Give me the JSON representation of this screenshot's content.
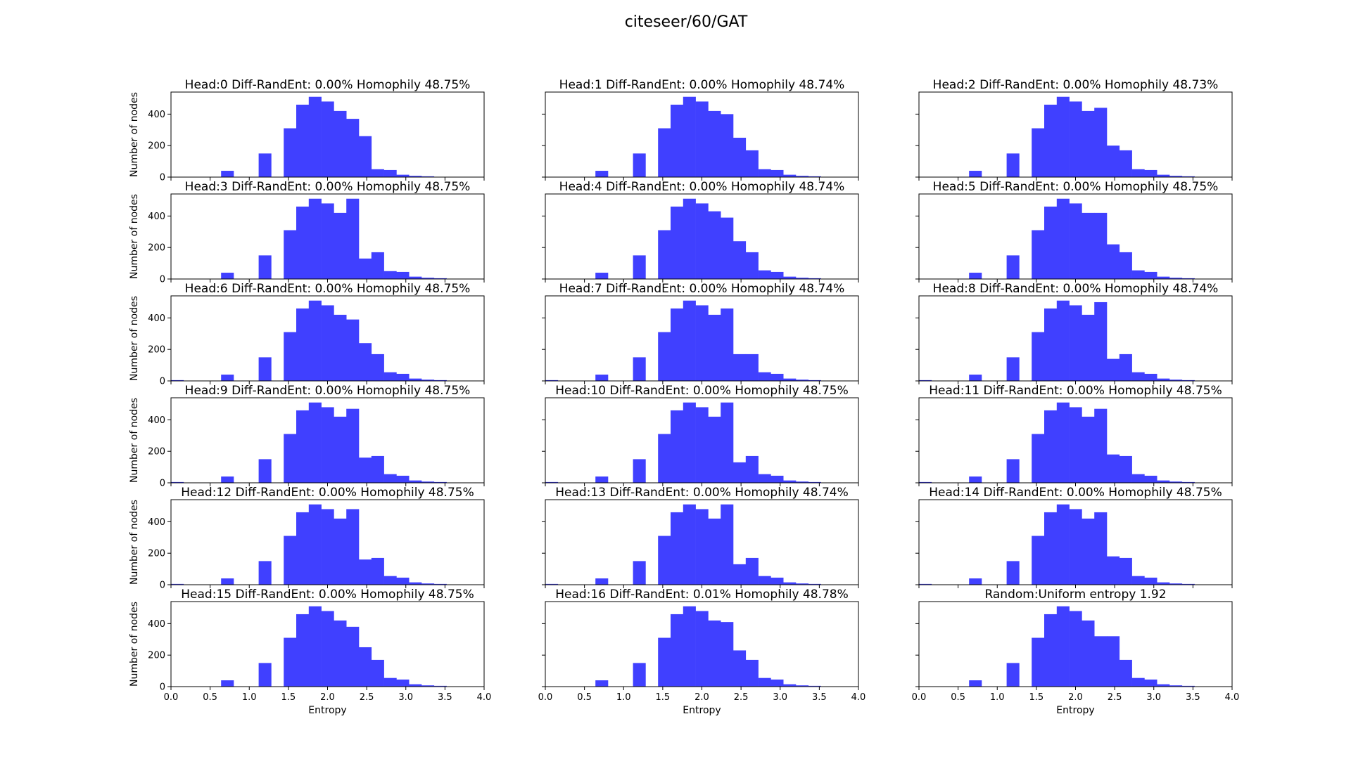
{
  "figure_title": "citeseer/60/GAT",
  "colors": {
    "bar": "#4040ff"
  },
  "chart_data": [
    {
      "type": "bar",
      "title": "Head:0 Diff-RandEnt: 0.00% Homophily 48.75%",
      "ylabel": "Number of nodes",
      "xlabel": "",
      "bin_start": 0.0,
      "bin_width": 0.16,
      "xlim": [
        0,
        4
      ],
      "ylim": [
        0,
        540
      ],
      "xticks": [
        "0.0",
        "0.5",
        "1.0",
        "1.5",
        "2.0",
        "2.5",
        "3.0",
        "3.5",
        "4.0"
      ],
      "yticks": [
        "0",
        "200",
        "400"
      ],
      "values": [
        0,
        0,
        0,
        0,
        40,
        0,
        0,
        150,
        0,
        310,
        460,
        510,
        480,
        420,
        370,
        260,
        50,
        45,
        15,
        8,
        5,
        2,
        0,
        0,
        0
      ]
    },
    {
      "type": "bar",
      "title": "Head:1 Diff-RandEnt: 0.00% Homophily 48.74%",
      "ylabel": "",
      "xlabel": "",
      "bin_start": 0.0,
      "bin_width": 0.16,
      "xlim": [
        0,
        4
      ],
      "ylim": [
        0,
        540
      ],
      "xticks": [
        "0.0",
        "0.5",
        "1.0",
        "1.5",
        "2.0",
        "2.5",
        "3.0",
        "3.5",
        "4.0"
      ],
      "yticks": [
        "0",
        "200",
        "400"
      ],
      "values": [
        0,
        0,
        0,
        0,
        40,
        0,
        0,
        150,
        0,
        310,
        460,
        510,
        480,
        420,
        400,
        250,
        170,
        50,
        45,
        15,
        8,
        5,
        2,
        0,
        0
      ]
    },
    {
      "type": "bar",
      "title": "Head:2 Diff-RandEnt: 0.00% Homophily 48.73%",
      "ylabel": "",
      "xlabel": "",
      "bin_start": 0.0,
      "bin_width": 0.16,
      "xlim": [
        0,
        4
      ],
      "ylim": [
        0,
        540
      ],
      "xticks": [
        "0.0",
        "0.5",
        "1.0",
        "1.5",
        "2.0",
        "2.5",
        "3.0",
        "3.5",
        "4.0"
      ],
      "yticks": [
        "0",
        "200",
        "400"
      ],
      "values": [
        0,
        0,
        0,
        0,
        40,
        0,
        0,
        150,
        0,
        310,
        460,
        510,
        480,
        420,
        440,
        200,
        170,
        50,
        45,
        15,
        8,
        5,
        2,
        0,
        0
      ]
    },
    {
      "type": "bar",
      "title": "Head:3 Diff-RandEnt: 0.00% Homophily 48.75%",
      "ylabel": "Number of nodes",
      "xlabel": "",
      "bin_start": 0.0,
      "bin_width": 0.16,
      "xlim": [
        0,
        4
      ],
      "ylim": [
        0,
        540
      ],
      "xticks": [
        "0.0",
        "0.5",
        "1.0",
        "1.5",
        "2.0",
        "2.5",
        "3.0",
        "3.5",
        "4.0"
      ],
      "yticks": [
        "0",
        "200",
        "400"
      ],
      "values": [
        0,
        0,
        0,
        0,
        40,
        0,
        0,
        150,
        0,
        310,
        460,
        510,
        480,
        420,
        510,
        130,
        170,
        50,
        45,
        15,
        8,
        5,
        2,
        0,
        0
      ]
    },
    {
      "type": "bar",
      "title": "Head:4 Diff-RandEnt: 0.00% Homophily 48.74%",
      "ylabel": "",
      "xlabel": "",
      "bin_start": 0.0,
      "bin_width": 0.16,
      "xlim": [
        0,
        4
      ],
      "ylim": [
        0,
        540
      ],
      "xticks": [
        "0.0",
        "0.5",
        "1.0",
        "1.5",
        "2.0",
        "2.5",
        "3.0",
        "3.5",
        "4.0"
      ],
      "yticks": [
        "0",
        "200",
        "400"
      ],
      "values": [
        0,
        0,
        0,
        0,
        40,
        0,
        0,
        150,
        0,
        310,
        460,
        510,
        480,
        430,
        390,
        240,
        170,
        55,
        45,
        15,
        8,
        5,
        2,
        0,
        0
      ]
    },
    {
      "type": "bar",
      "title": "Head:5 Diff-RandEnt: 0.00% Homophily 48.75%",
      "ylabel": "",
      "xlabel": "",
      "bin_start": 0.0,
      "bin_width": 0.16,
      "xlim": [
        0,
        4
      ],
      "ylim": [
        0,
        540
      ],
      "xticks": [
        "0.0",
        "0.5",
        "1.0",
        "1.5",
        "2.0",
        "2.5",
        "3.0",
        "3.5",
        "4.0"
      ],
      "yticks": [
        "0",
        "200",
        "400"
      ],
      "values": [
        0,
        0,
        0,
        0,
        40,
        0,
        0,
        150,
        0,
        310,
        460,
        510,
        480,
        420,
        420,
        220,
        170,
        55,
        45,
        15,
        8,
        5,
        2,
        0,
        0
      ]
    },
    {
      "type": "bar",
      "title": "Head:6 Diff-RandEnt: 0.00% Homophily 48.75%",
      "ylabel": "Number of nodes",
      "xlabel": "",
      "bin_start": 0.0,
      "bin_width": 0.16,
      "xlim": [
        0,
        4
      ],
      "ylim": [
        0,
        540
      ],
      "xticks": [
        "0.0",
        "0.5",
        "1.0",
        "1.5",
        "2.0",
        "2.5",
        "3.0",
        "3.5",
        "4.0"
      ],
      "yticks": [
        "0",
        "200",
        "400"
      ],
      "values": [
        5,
        0,
        0,
        0,
        40,
        0,
        0,
        150,
        0,
        310,
        460,
        510,
        480,
        420,
        390,
        240,
        170,
        55,
        45,
        15,
        8,
        5,
        2,
        0,
        0
      ]
    },
    {
      "type": "bar",
      "title": "Head:7 Diff-RandEnt: 0.00% Homophily 48.74%",
      "ylabel": "",
      "xlabel": "",
      "bin_start": 0.0,
      "bin_width": 0.16,
      "xlim": [
        0,
        4
      ],
      "ylim": [
        0,
        540
      ],
      "xticks": [
        "0.0",
        "0.5",
        "1.0",
        "1.5",
        "2.0",
        "2.5",
        "3.0",
        "3.5",
        "4.0"
      ],
      "yticks": [
        "0",
        "200",
        "400"
      ],
      "values": [
        5,
        0,
        0,
        0,
        40,
        0,
        0,
        150,
        0,
        310,
        460,
        510,
        480,
        420,
        460,
        170,
        170,
        55,
        45,
        15,
        8,
        5,
        2,
        0,
        0
      ]
    },
    {
      "type": "bar",
      "title": "Head:8 Diff-RandEnt: 0.00% Homophily 48.74%",
      "ylabel": "",
      "xlabel": "",
      "bin_start": 0.0,
      "bin_width": 0.16,
      "xlim": [
        0,
        4
      ],
      "ylim": [
        0,
        540
      ],
      "xticks": [
        "0.0",
        "0.5",
        "1.0",
        "1.5",
        "2.0",
        "2.5",
        "3.0",
        "3.5",
        "4.0"
      ],
      "yticks": [
        "0",
        "200",
        "400"
      ],
      "values": [
        5,
        0,
        0,
        0,
        40,
        0,
        0,
        150,
        0,
        310,
        460,
        510,
        480,
        420,
        500,
        140,
        170,
        55,
        45,
        15,
        8,
        5,
        2,
        0,
        0
      ]
    },
    {
      "type": "bar",
      "title": "Head:9 Diff-RandEnt: 0.00% Homophily 48.75%",
      "ylabel": "Number of nodes",
      "xlabel": "",
      "bin_start": 0.0,
      "bin_width": 0.16,
      "xlim": [
        0,
        4
      ],
      "ylim": [
        0,
        540
      ],
      "xticks": [
        "0.0",
        "0.5",
        "1.0",
        "1.5",
        "2.0",
        "2.5",
        "3.0",
        "3.5",
        "4.0"
      ],
      "yticks": [
        "0",
        "200",
        "400"
      ],
      "values": [
        5,
        0,
        0,
        0,
        40,
        0,
        0,
        150,
        0,
        310,
        460,
        510,
        480,
        420,
        470,
        160,
        170,
        55,
        45,
        15,
        8,
        5,
        2,
        0,
        0
      ]
    },
    {
      "type": "bar",
      "title": "Head:10 Diff-RandEnt: 0.00% Homophily 48.75%",
      "ylabel": "",
      "xlabel": "",
      "bin_start": 0.0,
      "bin_width": 0.16,
      "xlim": [
        0,
        4
      ],
      "ylim": [
        0,
        540
      ],
      "xticks": [
        "0.0",
        "0.5",
        "1.0",
        "1.5",
        "2.0",
        "2.5",
        "3.0",
        "3.5",
        "4.0"
      ],
      "yticks": [
        "0",
        "200",
        "400"
      ],
      "values": [
        5,
        0,
        0,
        0,
        40,
        0,
        0,
        150,
        0,
        310,
        460,
        510,
        480,
        420,
        510,
        130,
        170,
        55,
        45,
        15,
        8,
        5,
        2,
        0,
        0
      ]
    },
    {
      "type": "bar",
      "title": "Head:11 Diff-RandEnt: 0.00% Homophily 48.75%",
      "ylabel": "",
      "xlabel": "",
      "bin_start": 0.0,
      "bin_width": 0.16,
      "xlim": [
        0,
        4
      ],
      "ylim": [
        0,
        540
      ],
      "xticks": [
        "0.0",
        "0.5",
        "1.0",
        "1.5",
        "2.0",
        "2.5",
        "3.0",
        "3.5",
        "4.0"
      ],
      "yticks": [
        "0",
        "200",
        "400"
      ],
      "values": [
        5,
        0,
        0,
        0,
        40,
        0,
        0,
        150,
        0,
        310,
        460,
        510,
        480,
        420,
        470,
        180,
        170,
        55,
        45,
        15,
        8,
        5,
        2,
        0,
        0
      ]
    },
    {
      "type": "bar",
      "title": "Head:12 Diff-RandEnt: 0.00% Homophily 48.75%",
      "ylabel": "Number of nodes",
      "xlabel": "",
      "bin_start": 0.0,
      "bin_width": 0.16,
      "xlim": [
        0,
        4
      ],
      "ylim": [
        0,
        540
      ],
      "xticks": [
        "0.0",
        "0.5",
        "1.0",
        "1.5",
        "2.0",
        "2.5",
        "3.0",
        "3.5",
        "4.0"
      ],
      "yticks": [
        "0",
        "200",
        "400"
      ],
      "values": [
        5,
        0,
        0,
        0,
        40,
        0,
        0,
        150,
        0,
        310,
        460,
        510,
        480,
        420,
        480,
        160,
        170,
        55,
        45,
        15,
        8,
        5,
        2,
        0,
        0
      ]
    },
    {
      "type": "bar",
      "title": "Head:13 Diff-RandEnt: 0.00% Homophily 48.74%",
      "ylabel": "",
      "xlabel": "",
      "bin_start": 0.0,
      "bin_width": 0.16,
      "xlim": [
        0,
        4
      ],
      "ylim": [
        0,
        540
      ],
      "xticks": [
        "0.0",
        "0.5",
        "1.0",
        "1.5",
        "2.0",
        "2.5",
        "3.0",
        "3.5",
        "4.0"
      ],
      "yticks": [
        "0",
        "200",
        "400"
      ],
      "values": [
        5,
        0,
        0,
        0,
        40,
        0,
        0,
        150,
        0,
        310,
        460,
        510,
        480,
        420,
        510,
        130,
        170,
        55,
        45,
        15,
        8,
        5,
        2,
        0,
        0
      ]
    },
    {
      "type": "bar",
      "title": "Head:14 Diff-RandEnt: 0.00% Homophily 48.75%",
      "ylabel": "",
      "xlabel": "",
      "bin_start": 0.0,
      "bin_width": 0.16,
      "xlim": [
        0,
        4
      ],
      "ylim": [
        0,
        540
      ],
      "xticks": [
        "0.0",
        "0.5",
        "1.0",
        "1.5",
        "2.0",
        "2.5",
        "3.0",
        "3.5",
        "4.0"
      ],
      "yticks": [
        "0",
        "200",
        "400"
      ],
      "values": [
        5,
        0,
        0,
        0,
        40,
        0,
        0,
        150,
        0,
        310,
        460,
        510,
        480,
        420,
        460,
        180,
        170,
        55,
        45,
        15,
        8,
        5,
        2,
        0,
        0
      ]
    },
    {
      "type": "bar",
      "title": "Head:15 Diff-RandEnt: 0.00% Homophily 48.75%",
      "ylabel": "Number of nodes",
      "xlabel": "Entropy",
      "bin_start": 0.0,
      "bin_width": 0.16,
      "xlim": [
        0,
        4
      ],
      "ylim": [
        0,
        540
      ],
      "xticks": [
        "0.0",
        "0.5",
        "1.0",
        "1.5",
        "2.0",
        "2.5",
        "3.0",
        "3.5",
        "4.0"
      ],
      "yticks": [
        "0",
        "200",
        "400"
      ],
      "values": [
        0,
        0,
        0,
        0,
        40,
        0,
        0,
        150,
        0,
        310,
        460,
        510,
        480,
        420,
        380,
        250,
        170,
        55,
        45,
        15,
        8,
        5,
        2,
        0,
        0
      ]
    },
    {
      "type": "bar",
      "title": "Head:16 Diff-RandEnt: 0.01% Homophily 48.78%",
      "ylabel": "",
      "xlabel": "Entropy",
      "bin_start": 0.0,
      "bin_width": 0.16,
      "xlim": [
        0,
        4
      ],
      "ylim": [
        0,
        540
      ],
      "xticks": [
        "0.0",
        "0.5",
        "1.0",
        "1.5",
        "2.0",
        "2.5",
        "3.0",
        "3.5",
        "4.0"
      ],
      "yticks": [
        "0",
        "200",
        "400"
      ],
      "values": [
        0,
        0,
        0,
        0,
        40,
        0,
        0,
        150,
        0,
        310,
        460,
        510,
        480,
        420,
        410,
        230,
        170,
        55,
        45,
        15,
        8,
        5,
        2,
        0,
        0
      ]
    },
    {
      "type": "bar",
      "title": "Random:Uniform entropy 1.92",
      "ylabel": "",
      "xlabel": "Entropy",
      "bin_start": 0.0,
      "bin_width": 0.16,
      "xlim": [
        0,
        4
      ],
      "ylim": [
        0,
        540
      ],
      "xticks": [
        "0.0",
        "0.5",
        "1.0",
        "1.5",
        "2.0",
        "2.5",
        "3.0",
        "3.5",
        "4.0"
      ],
      "yticks": [
        "0",
        "200",
        "400"
      ],
      "values": [
        0,
        0,
        0,
        0,
        40,
        0,
        0,
        150,
        0,
        310,
        460,
        510,
        480,
        420,
        320,
        320,
        170,
        55,
        45,
        15,
        8,
        5,
        2,
        0,
        0
      ]
    }
  ]
}
